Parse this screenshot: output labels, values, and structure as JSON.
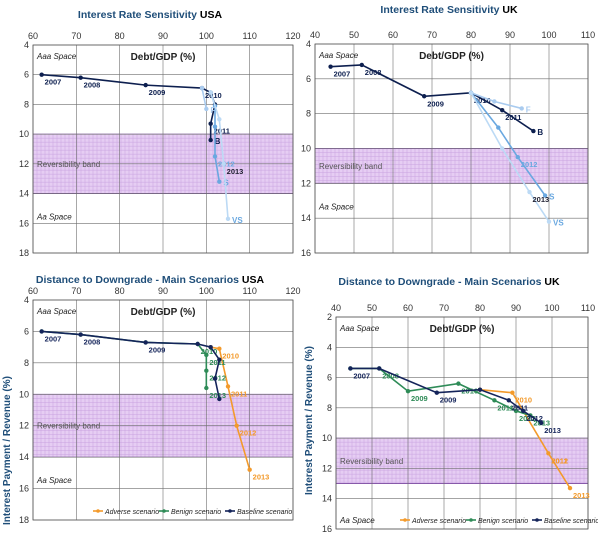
{
  "colors": {
    "title": "#1f4e79",
    "baseline": "#14245a",
    "benign": "#2e8b57",
    "adverse": "#f39a2b",
    "sens_b": "#0d1f4f",
    "sens_s": "#6aa8e0",
    "sens_f": "#a9cbef",
    "sens_vs": "#bcdaf5",
    "band_fill": "#e6cdf3",
    "band_grid": "#c9a3e0",
    "grid": "#6e6e6e"
  },
  "charts": [
    {
      "id": "irs-usa",
      "title": "Interest Rate Sensitivity",
      "country": "USA",
      "xlabel": "Debt/GDP (%)",
      "x_ticks": [
        "60",
        "70",
        "80",
        "90",
        "100",
        "110",
        "120"
      ],
      "y_ticks": [
        "4",
        "6",
        "8",
        "10",
        "12",
        "14",
        "16",
        "18"
      ],
      "zone_top": "Aaa Space",
      "zone_bottom": "Aa Space",
      "band_label": "Reversibility band",
      "ylabel": ""
    },
    {
      "id": "irs-uk",
      "title": "Interest Rate Sensitivity",
      "country": "UK",
      "xlabel": "Debt/GDP (%)",
      "x_ticks": [
        "40",
        "50",
        "60",
        "70",
        "80",
        "90",
        "100",
        "110"
      ],
      "y_ticks": [
        "4",
        "6",
        "8",
        "10",
        "12",
        "14",
        "16"
      ],
      "zone_top": "Aaa Space",
      "zone_bottom": "Aa Space",
      "band_label": "Reversibility band",
      "ylabel": ""
    },
    {
      "id": "dtd-usa",
      "title": "Distance to Downgrade - Main Scenarios",
      "country": "USA",
      "xlabel": "Debt/GDP (%)",
      "x_ticks": [
        "60",
        "70",
        "80",
        "90",
        "100",
        "110",
        "120"
      ],
      "y_ticks": [
        "4",
        "6",
        "8",
        "10",
        "12",
        "14",
        "16",
        "18"
      ],
      "zone_top": "Aaa Space",
      "zone_bottom": "Aa Space",
      "band_label": "Reversibility band",
      "ylabel": "Interest Payment / Revenue (%)",
      "legend": [
        "Adverse scenario",
        "Benign scenario",
        "Baseline scenario"
      ]
    },
    {
      "id": "dtd-uk",
      "title": "Distance to Downgrade - Main Scenarios",
      "country": "UK",
      "xlabel": "Debt/GDP (%)",
      "x_ticks": [
        "40",
        "50",
        "60",
        "70",
        "80",
        "90",
        "100",
        "110"
      ],
      "y_ticks": [
        "2",
        "4",
        "6",
        "8",
        "10",
        "12",
        "14",
        "16"
      ],
      "zone_top": "Aaa Space",
      "zone_bottom": "Aa Space",
      "band_label": "Reversibility band",
      "ylabel": "Interest Payment / Revenue (%)",
      "legend": [
        "Adverse scenario",
        "Benign scenario",
        "Baseline scenario"
      ]
    }
  ],
  "chart_data": [
    {
      "type": "line",
      "title": "Interest Rate Sensitivity USA",
      "xlabel": "Debt/GDP (%)",
      "xlim": [
        60,
        120
      ],
      "ylim": [
        4,
        18
      ],
      "y_inverted": true,
      "band": [
        10,
        14
      ],
      "band_label": "Reversibility band",
      "series": [
        {
          "name": "B",
          "color": "#0d1f4f",
          "points": [
            [
              62,
              6.0
            ],
            [
              71,
              6.2
            ],
            [
              86,
              6.7
            ],
            [
              99,
              6.9
            ],
            [
              101,
              7.2
            ],
            [
              102,
              8.0
            ],
            [
              101,
              9.3
            ],
            [
              101,
              10.4
            ]
          ],
          "labels": [
            [
              "2007",
              0
            ],
            [
              "2008",
              1
            ],
            [
              "2009",
              2
            ],
            [
              "2010",
              3
            ],
            [
              "2011",
              6
            ]
          ]
        },
        {
          "name": "S",
          "color": "#6aa8e0",
          "points": [
            [
              101,
              7.2
            ],
            [
              102,
              8.1
            ],
            [
              102,
              9.5
            ],
            [
              102,
              11.5
            ],
            [
              103,
              13.2
            ]
          ],
          "labels": [
            [
              "2012",
              3
            ]
          ]
        },
        {
          "name": "F",
          "color": "#a9cbef",
          "points": [
            [
              99,
              6.9
            ],
            [
              100,
              8.3
            ]
          ],
          "labels": []
        },
        {
          "name": "VS",
          "color": "#bcdaf5",
          "points": [
            [
              101,
              7.2
            ],
            [
              103,
              9.0
            ],
            [
              104,
              12.0
            ],
            [
              105,
              15.7
            ]
          ],
          "labels": [
            [
              "2013",
              2
            ]
          ]
        }
      ]
    },
    {
      "type": "line",
      "title": "Interest Rate Sensitivity UK",
      "xlabel": "Debt/GDP (%)",
      "xlim": [
        40,
        110
      ],
      "ylim": [
        4,
        16
      ],
      "y_inverted": true,
      "band": [
        10,
        12
      ],
      "band_label": "Reversibility band",
      "series": [
        {
          "name": "B",
          "color": "#0d1f4f",
          "points": [
            [
              44,
              5.3
            ],
            [
              52,
              5.2
            ],
            [
              68,
              7.0
            ],
            [
              80,
              6.8
            ],
            [
              88,
              7.8
            ],
            [
              96,
              9.0
            ]
          ],
          "labels": [
            [
              "2007",
              0
            ],
            [
              "2008",
              1
            ],
            [
              "2009",
              2
            ],
            [
              "2010",
              3
            ],
            [
              "2011",
              4
            ]
          ]
        },
        {
          "name": "F",
          "color": "#a9cbef",
          "points": [
            [
              80,
              6.8
            ],
            [
              86,
              7.3
            ],
            [
              93,
              7.7
            ]
          ],
          "labels": []
        },
        {
          "name": "S",
          "color": "#6aa8e0",
          "points": [
            [
              80,
              6.8
            ],
            [
              87,
              8.8
            ],
            [
              92,
              10.5
            ],
            [
              99,
              12.7
            ]
          ],
          "labels": [
            [
              "2012",
              2
            ]
          ]
        },
        {
          "name": "VS",
          "color": "#bcdaf5",
          "points": [
            [
              80,
              6.8
            ],
            [
              88,
              10.0
            ],
            [
              95,
              12.5
            ],
            [
              100,
              14.2
            ]
          ],
          "labels": [
            [
              "2013",
              2
            ]
          ]
        }
      ]
    },
    {
      "type": "line",
      "title": "Distance to Downgrade - Main Scenarios USA",
      "xlabel": "Debt/GDP (%)",
      "ylabel": "Interest Payment / Revenue (%)",
      "xlim": [
        60,
        120
      ],
      "ylim": [
        4,
        18
      ],
      "y_inverted": true,
      "band": [
        10,
        14
      ],
      "band_label": "Reversibility band",
      "series": [
        {
          "name": "Adverse scenario",
          "color": "#f39a2b",
          "points": [
            [
              101,
              7.0
            ],
            [
              103,
              7.1
            ],
            [
              105,
              9.5
            ],
            [
              107,
              12.0
            ],
            [
              110,
              14.8
            ]
          ],
          "labels": [
            [
              "2010",
              1
            ],
            [
              "2011",
              2
            ],
            [
              "2012",
              3
            ],
            [
              "2013",
              4
            ]
          ]
        },
        {
          "name": "Benign scenario",
          "color": "#2e8b57",
          "points": [
            [
              62,
              6.0
            ],
            [
              71,
              6.2
            ],
            [
              86,
              6.7
            ],
            [
              98,
              6.8
            ],
            [
              100,
              7.5
            ],
            [
              100,
              8.5
            ],
            [
              100,
              9.6
            ]
          ],
          "labels": [
            [
              "2010",
              3
            ],
            [
              "2011",
              4
            ],
            [
              "2012",
              5
            ],
            [
              "2013",
              6
            ]
          ]
        },
        {
          "name": "Baseline scenario",
          "color": "#14245a",
          "points": [
            [
              62,
              6.0
            ],
            [
              71,
              6.2
            ],
            [
              86,
              6.7
            ],
            [
              98,
              6.8
            ],
            [
              101,
              7.0
            ],
            [
              103,
              7.8
            ],
            [
              102,
              9.0
            ],
            [
              103,
              10.3
            ]
          ],
          "labels": [
            [
              "2007",
              0
            ],
            [
              "2008",
              1
            ],
            [
              "2009",
              2
            ]
          ]
        }
      ]
    },
    {
      "type": "line",
      "title": "Distance to Downgrade - Main Scenarios UK",
      "xlabel": "Debt/GDP (%)",
      "ylabel": "Interest Payment / Revenue (%)",
      "xlim": [
        40,
        110
      ],
      "ylim": [
        2,
        16
      ],
      "y_inverted": true,
      "band": [
        10,
        13
      ],
      "band_label": "Reversibility band",
      "series": [
        {
          "name": "Adverse scenario",
          "color": "#f39a2b",
          "points": [
            [
              80,
              6.8
            ],
            [
              89,
              7.0
            ],
            [
              99,
              11.0
            ],
            [
              105,
              13.3
            ]
          ],
          "labels": [
            [
              "2010",
              1
            ],
            [
              "2011",
              2
            ],
            [
              "2012",
              2
            ],
            [
              "2013",
              3
            ]
          ]
        },
        {
          "name": "Benign scenario",
          "color": "#2e8b57",
          "points": [
            [
              44,
              5.4
            ],
            [
              52,
              5.4
            ],
            [
              60,
              6.9
            ],
            [
              74,
              6.4
            ],
            [
              84,
              7.5
            ],
            [
              90,
              8.2
            ],
            [
              94,
              8.5
            ]
          ],
          "labels": [
            [
              "2008",
              1
            ],
            [
              "2009",
              2
            ],
            [
              "2010",
              3
            ],
            [
              "2011",
              4
            ],
            [
              "2012",
              5
            ],
            [
              "2013",
              6
            ]
          ]
        },
        {
          "name": "Baseline scenario",
          "color": "#14245a",
          "points": [
            [
              44,
              5.4
            ],
            [
              52,
              5.4
            ],
            [
              68,
              7.0
            ],
            [
              80,
              6.8
            ],
            [
              88,
              7.5
            ],
            [
              92,
              8.2
            ],
            [
              97,
              9.0
            ]
          ],
          "labels": [
            [
              "2007",
              0
            ],
            [
              "2009",
              2
            ],
            [
              "2011",
              4
            ],
            [
              "2012",
              5
            ],
            [
              "2013",
              6
            ]
          ]
        }
      ]
    }
  ]
}
